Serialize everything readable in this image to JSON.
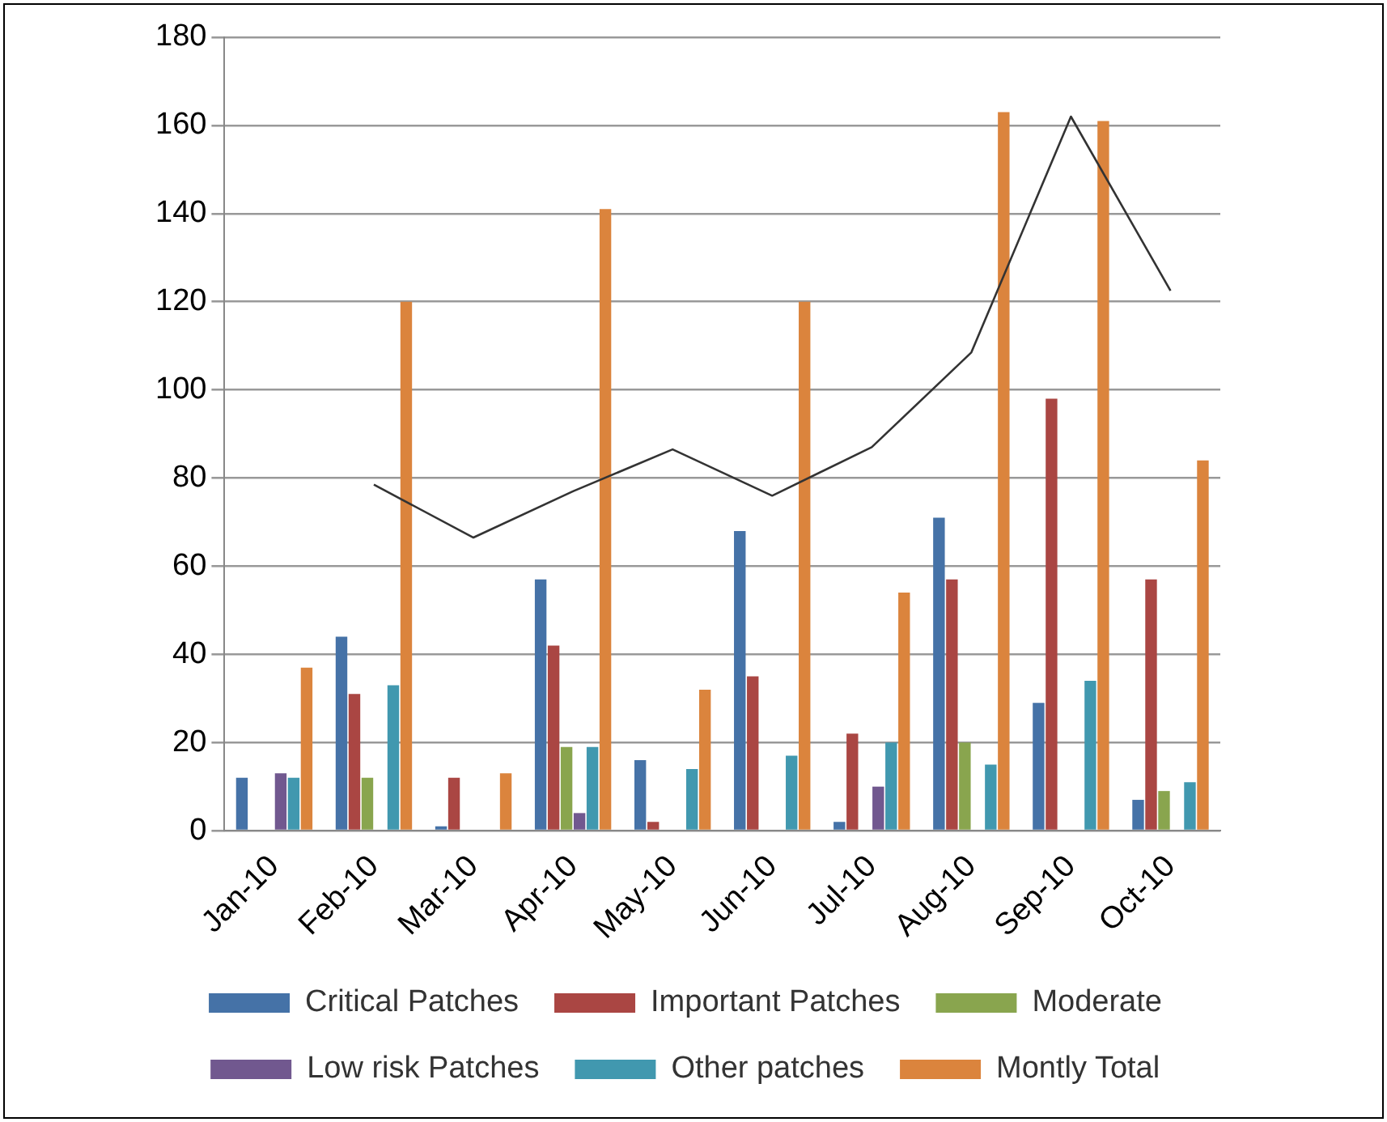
{
  "chart_data": {
    "type": "bar",
    "categories": [
      "Jan-10",
      "Feb-10",
      "Mar-10",
      "Apr-10",
      "May-10",
      "Jun-10",
      "Jul-10",
      "Aug-10",
      "Sep-10",
      "Oct-10"
    ],
    "series": [
      {
        "name": "Critical Patches",
        "color": "#4572a7",
        "values": [
          12,
          44,
          1,
          57,
          16,
          68,
          2,
          71,
          29,
          7
        ]
      },
      {
        "name": "Important Patches",
        "color": "#aa4643",
        "values": [
          0,
          31,
          12,
          42,
          2,
          35,
          22,
          57,
          98,
          57
        ]
      },
      {
        "name": "Moderate",
        "color": "#89a54e",
        "values": [
          0,
          12,
          0,
          19,
          0,
          0,
          0,
          20,
          0,
          9
        ]
      },
      {
        "name": "Low risk Patches",
        "color": "#71588f",
        "values": [
          13,
          0,
          0,
          4,
          0,
          0,
          10,
          0,
          0,
          0
        ]
      },
      {
        "name": "Other patches",
        "color": "#4198af",
        "values": [
          12,
          33,
          0,
          19,
          14,
          17,
          20,
          15,
          34,
          11
        ]
      },
      {
        "name": "Montly Total",
        "color": "#db843d",
        "values": [
          37,
          120,
          13,
          141,
          32,
          120,
          54,
          163,
          161,
          84
        ]
      },
      {
        "type": "line",
        "color": "#333333",
        "values": [
          null,
          78.5,
          66.5,
          77,
          86.5,
          76,
          87,
          108.5,
          162,
          122.5
        ]
      }
    ],
    "ylim": [
      0,
      180
    ],
    "yticks": [
      0,
      20,
      40,
      60,
      80,
      100,
      120,
      140,
      160,
      180
    ],
    "grid": "y",
    "legend": "bottom",
    "marker": "none"
  }
}
